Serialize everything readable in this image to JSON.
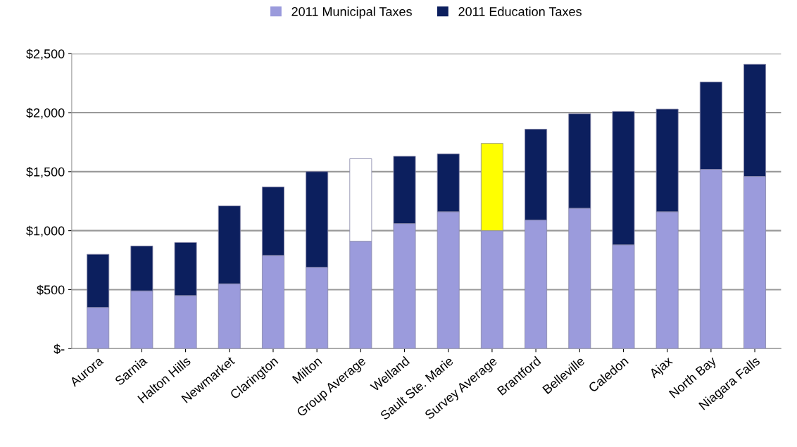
{
  "chart_data": {
    "type": "bar",
    "stacked": true,
    "categories": [
      "Aurora",
      "Sarnia",
      "Halton Hills",
      "Newmarket",
      "Clarington",
      "Milton",
      "Group Average",
      "Welland",
      "Sault Ste. Marie",
      "Survey Average",
      "Brantford",
      "Belleville",
      "Caledon",
      "Ajax",
      "North Bay",
      "Niagara Falls"
    ],
    "series": [
      {
        "name": "2011 Municipal Taxes",
        "color": "#9b9bdc",
        "values": [
          350,
          490,
          450,
          550,
          790,
          690,
          910,
          1060,
          1160,
          1000,
          1090,
          1190,
          880,
          1160,
          1520,
          1460
        ]
      },
      {
        "name": "2011 Education Taxes",
        "color": "#0c1f5e",
        "colors": [
          "#0c1f5e",
          "#0c1f5e",
          "#0c1f5e",
          "#0c1f5e",
          "#0c1f5e",
          "#0c1f5e",
          "#ffffff",
          "#0c1f5e",
          "#0c1f5e",
          "#ffff00",
          "#0c1f5e",
          "#0c1f5e",
          "#0c1f5e",
          "#0c1f5e",
          "#0c1f5e",
          "#0c1f5e"
        ],
        "values": [
          450,
          380,
          450,
          660,
          580,
          810,
          700,
          570,
          490,
          740,
          770,
          800,
          1130,
          870,
          740,
          950
        ]
      }
    ],
    "ylim": [
      0,
      2500
    ],
    "yticks": [
      {
        "value": 0,
        "label": "$-"
      },
      {
        "value": 500,
        "label": "$500"
      },
      {
        "value": 1000,
        "label": "$1,000"
      },
      {
        "value": 1500,
        "label": "$1,500"
      },
      {
        "value": 2000,
        "label": "$2,000"
      },
      {
        "value": 2500,
        "label": "$2,500"
      }
    ],
    "grid": "y",
    "legend": "top"
  }
}
